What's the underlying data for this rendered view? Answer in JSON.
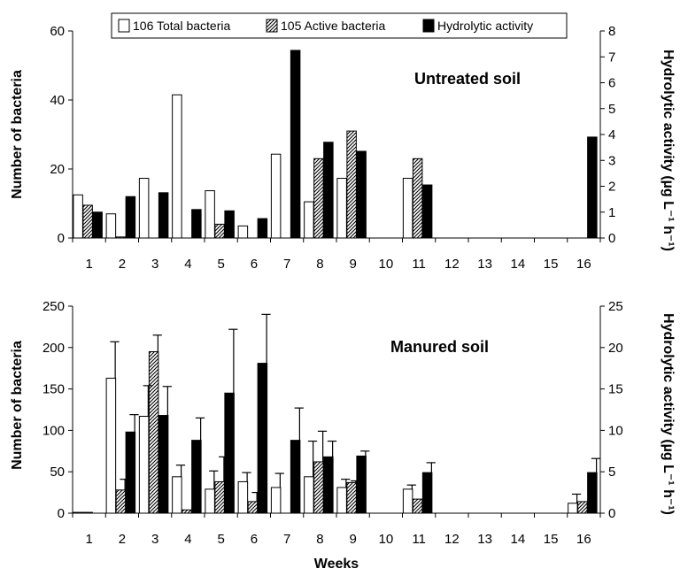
{
  "colors": {
    "total": "#ffffff",
    "active_hatch": "#000000",
    "hydrolytic": "#000000",
    "axis": "#000000"
  },
  "legend": {
    "total": "106 Total bacteria",
    "active": "105 Active bacteria",
    "hydrolytic": "Hydrolytic activity"
  },
  "xlabel": "Weeks",
  "chart_data": [
    {
      "type": "bar",
      "title": "Untreated soil",
      "ylabel": "Number of bacteria",
      "y2label": "Hydrolytic activity (µg L⁻¹ h⁻¹)",
      "ylim": [
        0,
        60
      ],
      "yticks": [
        0,
        20,
        40,
        60
      ],
      "y2lim": [
        0,
        8
      ],
      "y2ticks": [
        0,
        1,
        2,
        3,
        4,
        5,
        6,
        7,
        8
      ],
      "categories": [
        "1",
        "2",
        "3",
        "4",
        "5",
        "6",
        "7",
        "8",
        "9",
        "10",
        "11",
        "12",
        "13",
        "14",
        "15",
        "16"
      ],
      "series": [
        {
          "name": "106 Total bacteria",
          "axis": "left",
          "values": [
            12.5,
            7,
            17.3,
            41.5,
            13.7,
            3.5,
            24.3,
            10.5,
            17.3,
            null,
            17.3,
            null,
            null,
            null,
            null,
            null
          ]
        },
        {
          "name": "105 Active bacteria",
          "axis": "left",
          "values": [
            9.5,
            0.3,
            null,
            null,
            4,
            null,
            null,
            23,
            31,
            null,
            23,
            null,
            null,
            null,
            null,
            null
          ]
        },
        {
          "name": "Hydrolytic activity",
          "axis": "right",
          "values": [
            1,
            1.6,
            1.75,
            1.1,
            1.05,
            0.75,
            7.25,
            3.7,
            3.35,
            null,
            2.05,
            null,
            null,
            null,
            null,
            3.9
          ]
        }
      ]
    },
    {
      "type": "bar",
      "title": "Manured soil",
      "ylabel": "Number of bacteria",
      "y2label": "Hydrolytic activity (µg L⁻¹ h⁻¹)",
      "ylim": [
        0,
        250
      ],
      "yticks": [
        0,
        50,
        100,
        150,
        200,
        250
      ],
      "y2lim": [
        0,
        25
      ],
      "y2ticks": [
        0,
        5,
        10,
        15,
        20,
        25
      ],
      "categories": [
        "1",
        "2",
        "3",
        "4",
        "5",
        "6",
        "7",
        "8",
        "9",
        "10",
        "11",
        "12",
        "13",
        "14",
        "15",
        "16"
      ],
      "series": [
        {
          "name": "106 Total bacteria",
          "axis": "left",
          "values": [
            1,
            163,
            117,
            44,
            29,
            38,
            31,
            44,
            31,
            null,
            29,
            null,
            null,
            null,
            null,
            12
          ],
          "errors": [
            0,
            44,
            37,
            14,
            22,
            11,
            17,
            43,
            10,
            null,
            5,
            null,
            null,
            null,
            null,
            11
          ]
        },
        {
          "name": "105 Active bacteria",
          "axis": "left",
          "values": [
            1,
            28,
            195,
            4,
            38,
            14,
            null,
            62,
            37,
            null,
            17,
            null,
            null,
            null,
            null,
            14
          ],
          "errors": [
            0,
            13,
            20,
            0,
            30,
            11,
            null,
            37,
            2,
            null,
            0,
            null,
            null,
            null,
            null,
            0
          ]
        },
        {
          "name": "Hydrolytic activity",
          "axis": "right",
          "values": [
            null,
            9.8,
            11.8,
            8.8,
            14.5,
            18.1,
            8.8,
            6.8,
            6.9,
            null,
            4.9,
            null,
            null,
            null,
            null,
            4.9
          ],
          "errors": [
            null,
            2.1,
            3.5,
            2.7,
            7.7,
            5.9,
            3.9,
            1.9,
            0.6,
            null,
            1.2,
            null,
            null,
            null,
            null,
            1.7
          ]
        }
      ]
    }
  ]
}
